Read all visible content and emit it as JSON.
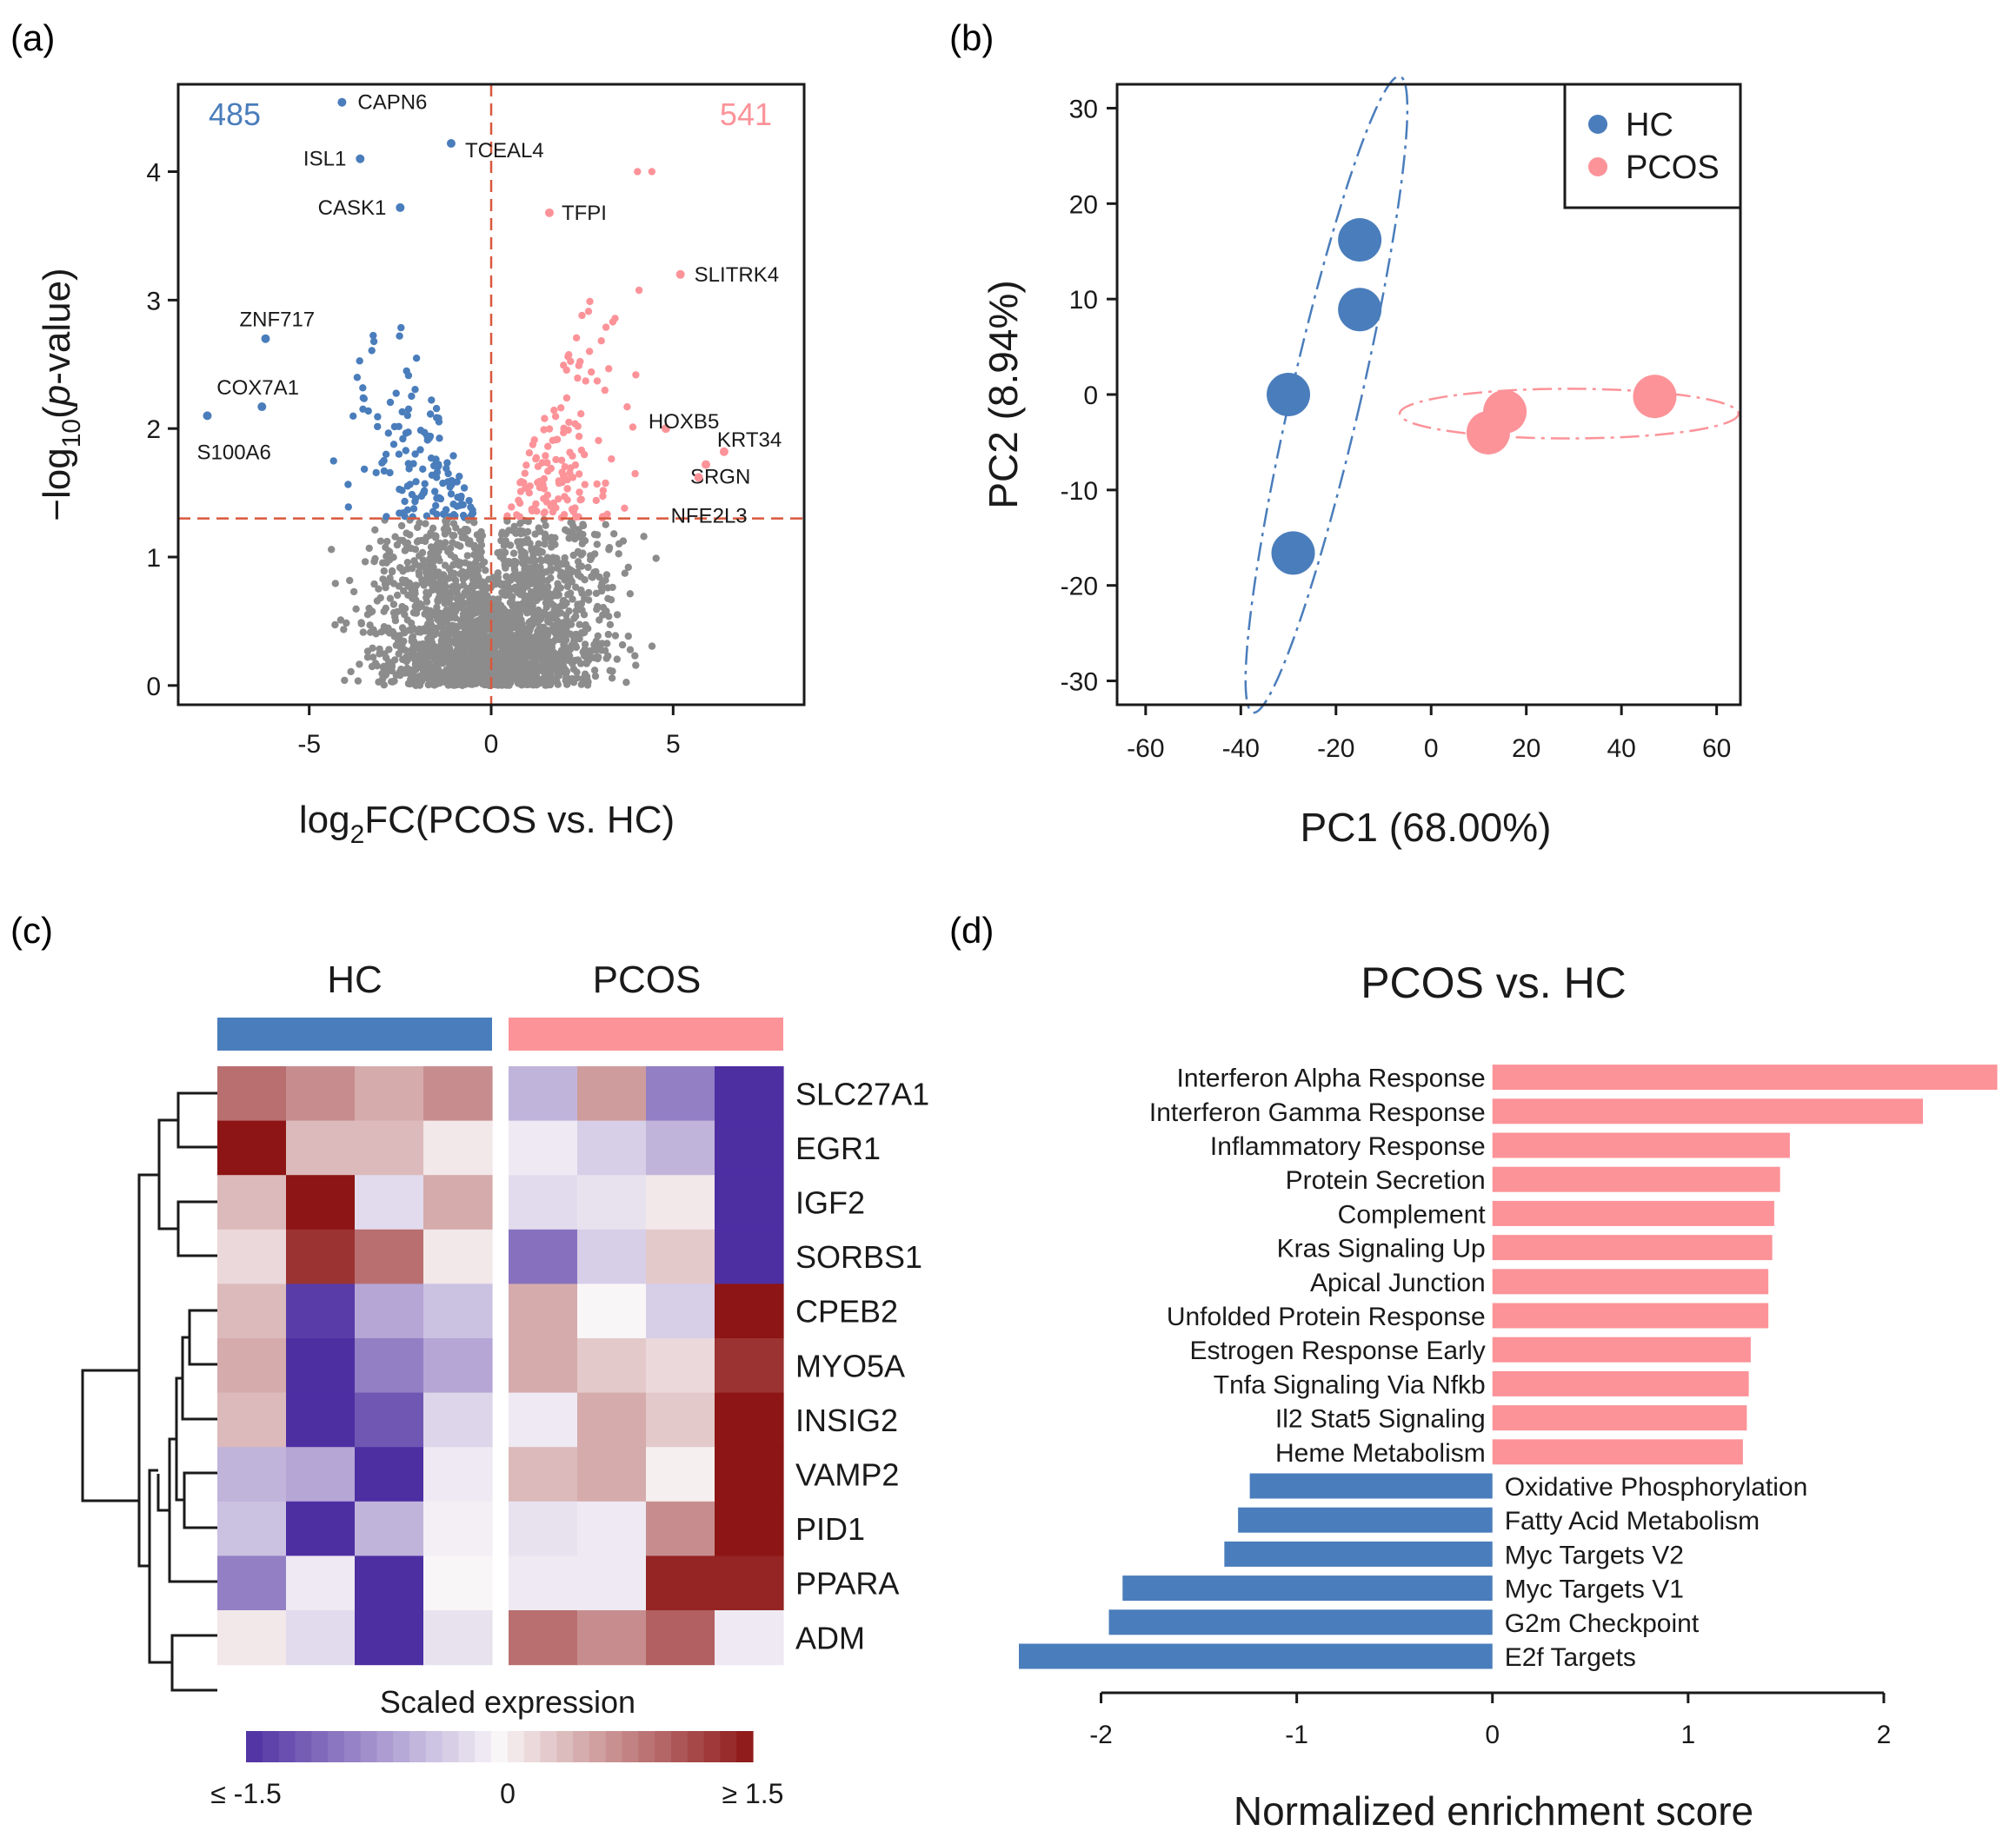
{
  "colors": {
    "hc": "#4a7dbb",
    "pcos": "#fc9399",
    "ns": "#8c8c8c",
    "threshold": "#d9573b",
    "low": "#4e2fa2",
    "mid": "#f9f6f8",
    "high": "#8e1515"
  },
  "chart_data": [
    {
      "panel": "(a)",
      "type": "scatter",
      "subtype": "volcano",
      "xlabel_main": "log",
      "xlabel_sub": "2",
      "xlabel_rest": "FC(PCOS vs. HC)",
      "ylabel_a": "−log",
      "ylabel_sub": "10",
      "ylabel_b": "(",
      "ylabel_italic": "p",
      "ylabel_c": "-value)",
      "xlim": [
        -8.6,
        8.6
      ],
      "ylim": [
        -0.15,
        4.68
      ],
      "xticks": [
        -5,
        0,
        5
      ],
      "xtick_labels": [
        "-5",
        "0",
        "5"
      ],
      "yticks": [
        0,
        1,
        2,
        3,
        4
      ],
      "ytick_labels": [
        "0",
        "1",
        "2",
        "3",
        "4"
      ],
      "thresholds": {
        "x": 0,
        "y": 1.3
      },
      "counts": {
        "down": "485",
        "up": "541"
      },
      "labeled_genes": [
        {
          "gene": "CAPN6",
          "x": -4.1,
          "y": 4.54,
          "group": "down"
        },
        {
          "gene": "ISL1",
          "x": -3.6,
          "y": 4.1,
          "group": "down"
        },
        {
          "gene": "TCEAL4",
          "x": -1.1,
          "y": 4.22,
          "group": "down"
        },
        {
          "gene": "CASK1",
          "x": -2.5,
          "y": 3.72,
          "group": "down"
        },
        {
          "gene": "TFPI",
          "x": 1.6,
          "y": 3.68,
          "group": "up"
        },
        {
          "gene": "SLITRK4",
          "x": 5.2,
          "y": 3.2,
          "group": "up"
        },
        {
          "gene": "ZNF717",
          "x": -6.2,
          "y": 2.7,
          "group": "down"
        },
        {
          "gene": "COX7A1",
          "x": -6.3,
          "y": 2.17,
          "group": "down"
        },
        {
          "gene": "S100A6",
          "x": -7.8,
          "y": 2.1,
          "group": "down"
        },
        {
          "gene": "HOXB5",
          "x": 4.8,
          "y": 2.0,
          "group": "up"
        },
        {
          "gene": "KRT34",
          "x": 6.4,
          "y": 1.82,
          "group": "up"
        },
        {
          "gene": "SRGN",
          "x": 5.9,
          "y": 1.72,
          "group": "up"
        },
        {
          "gene": "NFE2L3",
          "x": 5.7,
          "y": 1.62,
          "group": "up"
        }
      ]
    },
    {
      "panel": "(b)",
      "type": "scatter",
      "subtype": "pca",
      "xlabel": "PC1 (68.00%)",
      "ylabel": "PC2 (8.94%)",
      "xlim": [
        -66,
        65
      ],
      "ylim": [
        -32.5,
        32.5
      ],
      "xticks": [
        -60,
        -40,
        -20,
        0,
        20,
        40,
        60
      ],
      "xtick_labels": [
        "-60",
        "-40",
        "-20",
        "0",
        "20",
        "40",
        "60"
      ],
      "yticks": [
        -30,
        -20,
        -10,
        0,
        10,
        20,
        30
      ],
      "ytick_labels": [
        "-30",
        "-20",
        "-10",
        "0",
        "10",
        "20",
        "30"
      ],
      "series": [
        {
          "name": "HC",
          "points": [
            [
              -15,
              16.2
            ],
            [
              -15,
              8.9
            ],
            [
              -30,
              0
            ],
            [
              -29,
              -16.6
            ]
          ],
          "ellipse": {
            "cx": -22,
            "cy": 0,
            "rx": 7.3,
            "ry": 34.2,
            "angle_deg": 13
          }
        },
        {
          "name": "PCOS",
          "points": [
            [
              15.5,
              -1.8
            ],
            [
              12,
              -4
            ],
            [
              47,
              -0.2
            ]
          ],
          "ellipse": {
            "cx": 29,
            "cy": -2,
            "rx": 35.6,
            "ry": 2.6,
            "angle_deg": 0
          }
        }
      ],
      "legend": [
        "HC",
        "PCOS"
      ],
      "legend_position": "top-right"
    },
    {
      "panel": "(c)",
      "type": "heatmap",
      "groups": [
        "HC",
        "PCOS"
      ],
      "genes": [
        "SLC27A1",
        "EGR1",
        "IGF2",
        "SORBS1",
        "CPEB2",
        "MYO5A",
        "INSIG2",
        "VAMP2",
        "PID1",
        "PPARA",
        "ADM"
      ],
      "values": [
        [
          0.9,
          0.7,
          0.5,
          0.7,
          -0.5,
          0.6,
          -0.9,
          -1.5
        ],
        [
          1.5,
          0.4,
          0.4,
          0.1,
          -0.1,
          -0.3,
          -0.5,
          -1.5
        ],
        [
          0.4,
          1.5,
          -0.2,
          0.5,
          -0.2,
          -0.15,
          0.1,
          -1.5
        ],
        [
          0.2,
          1.3,
          0.9,
          0.1,
          -1.0,
          -0.3,
          0.3,
          -1.5
        ],
        [
          0.4,
          -1.4,
          -0.6,
          -0.4,
          0.5,
          0.0,
          -0.3,
          1.5
        ],
        [
          0.5,
          -1.5,
          -0.9,
          -0.6,
          0.5,
          0.3,
          0.2,
          1.3
        ],
        [
          0.4,
          -1.5,
          -1.2,
          -0.25,
          -0.1,
          0.5,
          0.3,
          1.5
        ],
        [
          -0.5,
          -0.6,
          -1.5,
          -0.1,
          0.4,
          0.5,
          0.05,
          1.5
        ],
        [
          -0.4,
          -1.5,
          -0.5,
          -0.05,
          -0.15,
          -0.1,
          0.7,
          1.5
        ],
        [
          -0.9,
          -0.1,
          -1.5,
          0.0,
          -0.1,
          -0.1,
          1.4,
          1.4
        ],
        [
          0.1,
          -0.2,
          -1.5,
          -0.15,
          0.9,
          0.7,
          1.0,
          -0.1
        ]
      ],
      "colorbar": {
        "title": "Scaled expression",
        "min_label": "≤ -1.5",
        "mid_label": "0",
        "max_label": "≥ 1.5",
        "range": [
          -1.5,
          1.5
        ]
      }
    },
    {
      "panel": "(d)",
      "type": "bar",
      "orientation": "horizontal",
      "title": "PCOS vs. HC",
      "xlabel": "Normalized enrichment score",
      "xlim": [
        -2.42,
        2.6
      ],
      "xticks": [
        -2,
        -1,
        0,
        1,
        2
      ],
      "xtick_labels": [
        "-2",
        "-1",
        "0",
        "1",
        "2"
      ],
      "categories": [
        "Interferon Alpha Response",
        "Interferon Gamma Response",
        "Inflammatory Response",
        "Protein Secretion",
        "Complement",
        "Kras Signaling Up",
        "Apical Junction",
        "Unfolded Protein Response",
        "Estrogen Response Early",
        "Tnfa Signaling Via Nfkb",
        "Il2 Stat5 Signaling",
        "Heme Metabolism",
        "Oxidative Phosphorylation",
        "Fatty Acid Metabolism",
        "Myc Targets V2",
        "Myc Targets V1",
        "G2m Checkpoint",
        "E2f Targets"
      ],
      "values": [
        2.58,
        2.2,
        1.52,
        1.47,
        1.44,
        1.43,
        1.41,
        1.41,
        1.32,
        1.31,
        1.3,
        1.28,
        -1.24,
        -1.3,
        -1.37,
        -1.89,
        -1.96,
        -2.42
      ]
    }
  ]
}
